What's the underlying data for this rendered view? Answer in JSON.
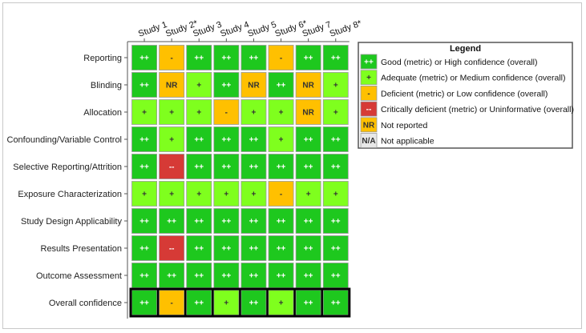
{
  "chart_data": {
    "type": "heatmap",
    "columns": [
      "Study 1",
      "Study 2*",
      "Study 3",
      "Study 4",
      "Study 5",
      "Study 6*",
      "Study 7",
      "Study 8*"
    ],
    "rows": [
      {
        "label": "Reporting",
        "values": [
          "++",
          "-",
          "++",
          "++",
          "++",
          "-",
          "++",
          "++"
        ]
      },
      {
        "label": "Blinding",
        "values": [
          "++",
          "NR",
          "+",
          "++",
          "NR",
          "++",
          "NR",
          "+"
        ]
      },
      {
        "label": "Allocation",
        "values": [
          "+",
          "+",
          "+",
          "-",
          "+",
          "+",
          "NR",
          "+"
        ]
      },
      {
        "label": "Confounding/Variable Control",
        "values": [
          "++",
          "+",
          "++",
          "++",
          "++",
          "+",
          "++",
          "++"
        ]
      },
      {
        "label": "Selective Reporting/Attrition",
        "values": [
          "++",
          "--",
          "++",
          "++",
          "++",
          "++",
          "++",
          "++"
        ]
      },
      {
        "label": "Exposure Characterization",
        "values": [
          "+",
          "+",
          "+",
          "+",
          "+",
          "-",
          "+",
          "+"
        ]
      },
      {
        "label": "Study Design Applicability",
        "values": [
          "++",
          "++",
          "++",
          "++",
          "++",
          "++",
          "++",
          "++"
        ]
      },
      {
        "label": "Results Presentation",
        "values": [
          "++",
          "--",
          "++",
          "++",
          "++",
          "++",
          "++",
          "++"
        ]
      },
      {
        "label": "Outcome Assessment",
        "values": [
          "++",
          "++",
          "++",
          "++",
          "++",
          "++",
          "++",
          "++"
        ]
      },
      {
        "label": "Overall confidence",
        "values": [
          "++",
          "-",
          "++",
          "+",
          "++",
          "+",
          "++",
          "++"
        ]
      }
    ],
    "colors": {
      "++": "#1ec81e",
      "+": "#7fff1e",
      "-": "#ffc000",
      "--": "#d63a36",
      "NR": "#ffc000",
      "N/A": "#e8e8e8"
    },
    "text_colors": {
      "++": "#ffffff",
      "+": "#333333",
      "-": "#333333",
      "--": "#ffffff",
      "NR": "#333333",
      "N/A": "#333333"
    },
    "legend": {
      "title": "Legend",
      "placement": "top-right",
      "items": [
        {
          "symbol": "++",
          "text": "Good (metric) or High confidence (overall)"
        },
        {
          "symbol": "+",
          "text": "Adequate (metric) or Medium confidence (overall)"
        },
        {
          "symbol": "-",
          "text": "Deficient (metric) or Low confidence (overall)"
        },
        {
          "symbol": "--",
          "text": "Critically deficient (metric) or Uninformative (overall)"
        },
        {
          "symbol": "NR",
          "text": "Not reported"
        },
        {
          "symbol": "N/A",
          "text": "Not applicable"
        }
      ]
    }
  }
}
